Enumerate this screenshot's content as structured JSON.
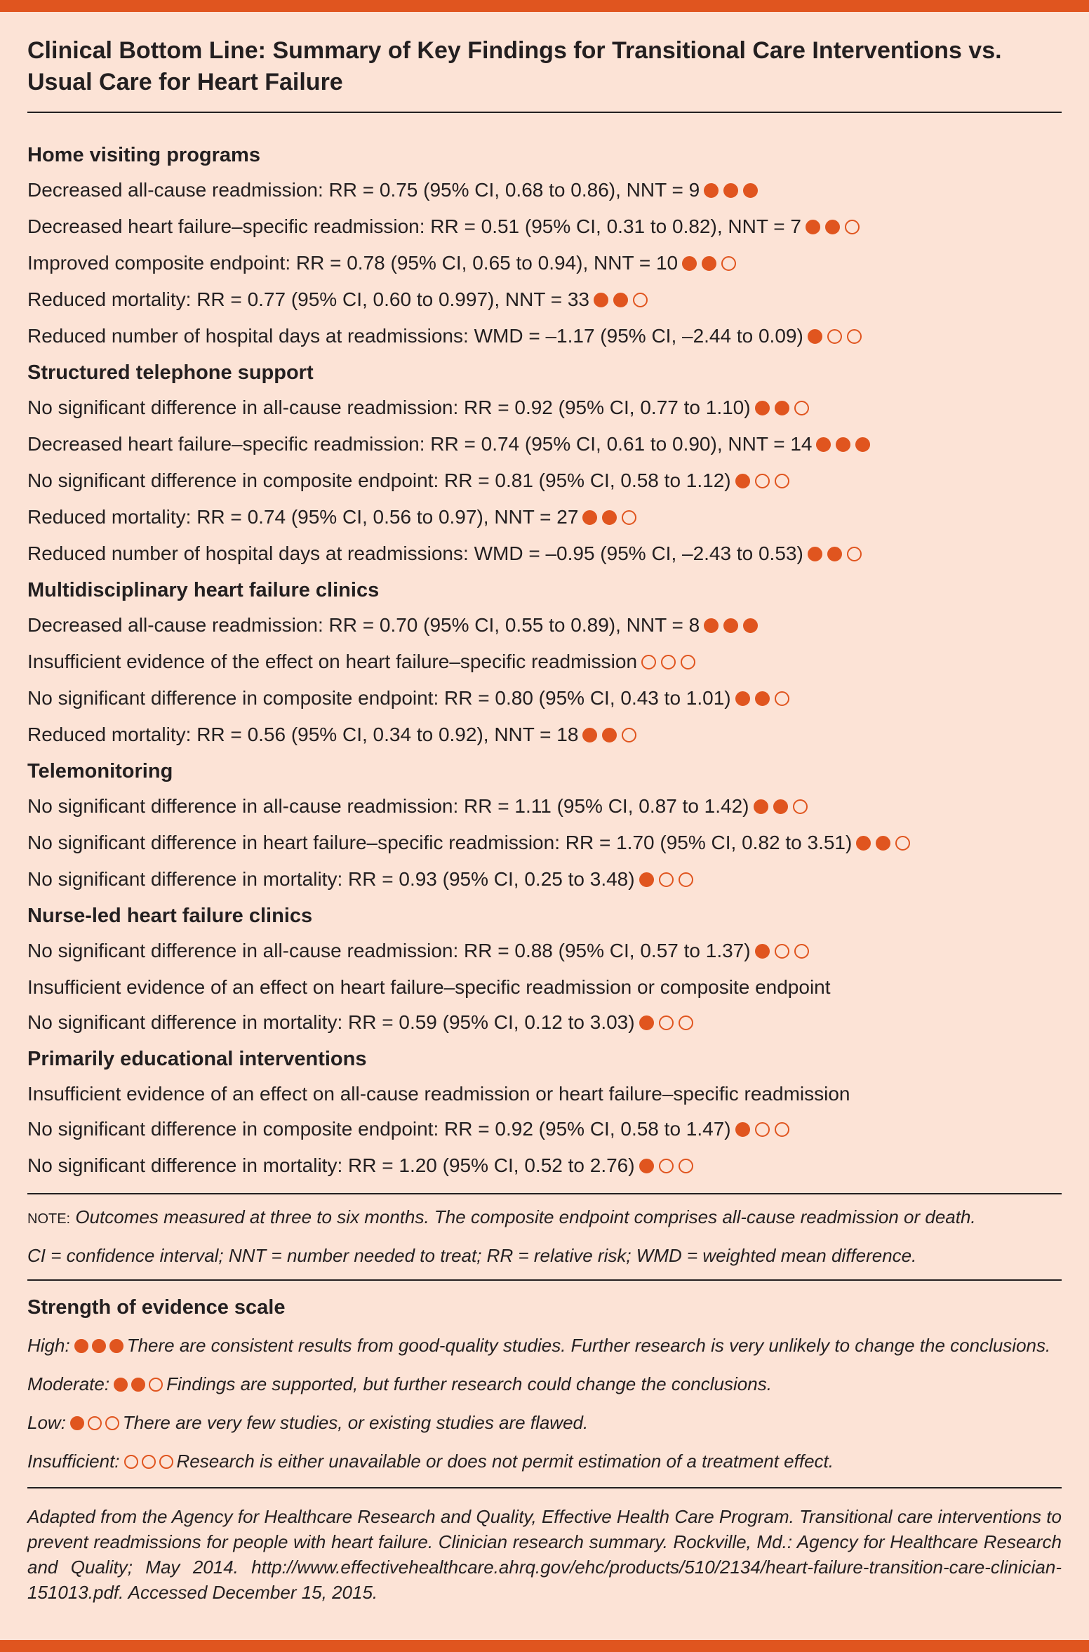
{
  "title": "Clinical Bottom Line: Summary of Key Findings for Transitional Care Interventions vs. Usual Care for Heart Failure",
  "sections": [
    {
      "heading": "Home visiting programs",
      "items": [
        {
          "text": "Decreased all-cause readmission: RR = 0.75 (95% CI, 0.68 to 0.86), NNT = 9",
          "rating": 3
        },
        {
          "text": "Decreased heart failure–specific readmission: RR = 0.51 (95% CI, 0.31 to 0.82), NNT = 7",
          "rating": 2
        },
        {
          "text": "Improved composite endpoint: RR = 0.78 (95% CI, 0.65 to 0.94), NNT = 10",
          "rating": 2
        },
        {
          "text": "Reduced mortality: RR = 0.77 (95% CI, 0.60 to 0.997), NNT = 33",
          "rating": 2
        },
        {
          "text": "Reduced number of hospital days at readmissions: WMD = –1.17 (95% CI, –2.44 to 0.09)",
          "rating": 1
        }
      ]
    },
    {
      "heading": "Structured telephone support",
      "items": [
        {
          "text": "No significant difference in all-cause readmission: RR = 0.92 (95% CI, 0.77 to 1.10)",
          "rating": 2
        },
        {
          "text": "Decreased heart failure–specific readmission: RR = 0.74 (95% CI, 0.61 to 0.90), NNT = 14",
          "rating": 3
        },
        {
          "text": "No significant difference in composite endpoint: RR = 0.81 (95% CI, 0.58 to 1.12)",
          "rating": 1
        },
        {
          "text": "Reduced mortality: RR = 0.74 (95% CI, 0.56 to 0.97), NNT = 27",
          "rating": 2
        },
        {
          "text": "Reduced number of hospital days at readmissions: WMD = –0.95 (95% CI, –2.43 to 0.53)",
          "rating": 2
        }
      ]
    },
    {
      "heading": "Multidisciplinary heart failure clinics",
      "items": [
        {
          "text": "Decreased all-cause readmission: RR = 0.70 (95% CI, 0.55 to 0.89), NNT = 8",
          "rating": 3
        },
        {
          "text": "Insufficient evidence of the effect on heart failure–specific readmission",
          "rating": 0
        },
        {
          "text": "No significant difference in composite endpoint: RR = 0.80 (95% CI, 0.43 to 1.01)",
          "rating": 2
        },
        {
          "text": "Reduced mortality: RR = 0.56 (95% CI, 0.34 to 0.92), NNT = 18",
          "rating": 2
        }
      ]
    },
    {
      "heading": "Telemonitoring",
      "items": [
        {
          "text": "No significant difference in all-cause readmission: RR = 1.11 (95% CI, 0.87 to 1.42)",
          "rating": 2
        },
        {
          "text": "No significant difference in heart failure–specific readmission: RR = 1.70 (95% CI, 0.82 to 3.51)",
          "rating": 2
        },
        {
          "text": "No significant difference in mortality: RR = 0.93 (95% CI, 0.25 to 3.48)",
          "rating": 1
        }
      ]
    },
    {
      "heading": "Nurse-led heart failure clinics",
      "items": [
        {
          "text": "No significant difference in all-cause readmission: RR = 0.88 (95% CI, 0.57 to 1.37)",
          "rating": 1
        },
        {
          "text": "Insufficient evidence of an effect on heart failure–specific readmission or composite endpoint"
        },
        {
          "text": "No significant difference in mortality: RR = 0.59 (95% CI, 0.12 to 3.03)",
          "rating": 1
        }
      ]
    },
    {
      "heading": "Primarily educational interventions",
      "items": [
        {
          "text": "Insufficient evidence of an effect on all-cause readmission or heart failure–specific readmission"
        },
        {
          "text": "No significant difference in composite endpoint: RR = 0.92 (95% CI, 0.58 to 1.47)",
          "rating": 1
        },
        {
          "text": "No significant difference in mortality: RR = 1.20 (95% CI, 0.52 to 2.76)",
          "rating": 1
        }
      ]
    }
  ],
  "note": {
    "label": "NOTE:",
    "text": "Outcomes measured at three to six months. The composite endpoint comprises all-cause readmission or death."
  },
  "abbreviations": "CI = confidence interval; NNT = number needed to treat; RR = relative risk; WMD = weighted mean difference.",
  "scale": {
    "heading": "Strength of evidence scale",
    "levels": [
      {
        "label": "High:",
        "rating": 3,
        "text": "There are consistent results from good-quality studies. Further research is very unlikely to change the conclusions."
      },
      {
        "label": "Moderate:",
        "rating": 2,
        "text": "Findings are supported, but further research could change the conclusions."
      },
      {
        "label": "Low:",
        "rating": 1,
        "text": "There are very few studies, or existing studies are flawed."
      },
      {
        "label": "Insufficient:",
        "rating": 0,
        "text": "Research is either unavailable or does not permit estimation of a treatment effect."
      }
    ]
  },
  "source": "Adapted from the Agency for Healthcare Research and Quality, Effective Health Care Program. Transitional care interventions to prevent readmissions for people with heart failure. Clinician research summary. Rockville, Md.: Agency for Healthcare Research and Quality; May 2014. http://www.effectivehealthcare.ahrq.gov/ehc/products/510/2134/heart-failure-transition-care-clinician-151013.pdf. Accessed December 15, 2015."
}
